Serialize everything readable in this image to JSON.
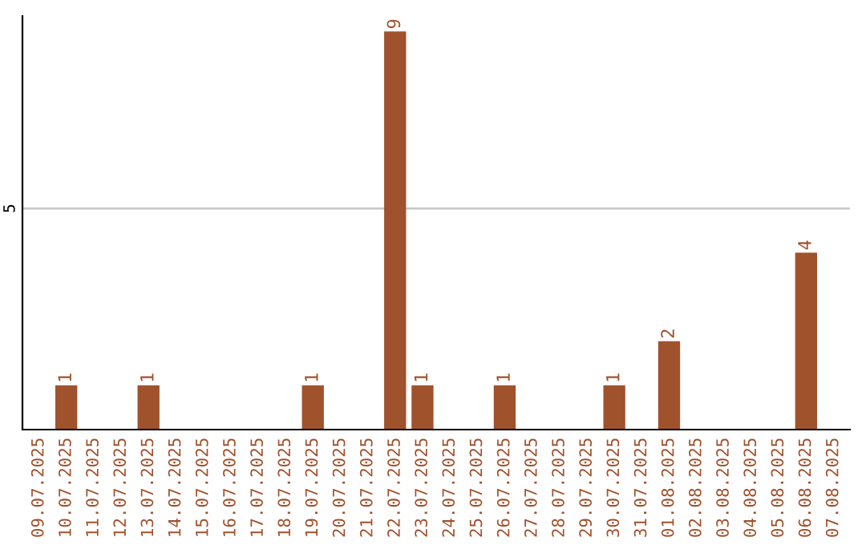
{
  "chart_data": {
    "type": "bar",
    "categories": [
      "09.07.2025",
      "10.07.2025",
      "11.07.2025",
      "12.07.2025",
      "13.07.2025",
      "14.07.2025",
      "15.07.2025",
      "16.07.2025",
      "17.07.2025",
      "18.07.2025",
      "19.07.2025",
      "20.07.2025",
      "21.07.2025",
      "22.07.2025",
      "23.07.2025",
      "24.07.2025",
      "25.07.2025",
      "26.07.2025",
      "27.07.2025",
      "28.07.2025",
      "29.07.2025",
      "30.07.2025",
      "31.07.2025",
      "01.08.2025",
      "02.08.2025",
      "03.08.2025",
      "04.08.2025",
      "05.08.2025",
      "06.08.2025",
      "07.08.2025"
    ],
    "values": [
      0,
      1,
      0,
      0,
      1,
      0,
      0,
      0,
      0,
      0,
      1,
      0,
      0,
      9,
      1,
      0,
      0,
      1,
      0,
      0,
      0,
      1,
      0,
      2,
      0,
      0,
      0,
      0,
      4,
      0
    ],
    "value_labels": [
      null,
      "1",
      null,
      null,
      "1",
      null,
      null,
      null,
      null,
      null,
      "1",
      null,
      null,
      "9",
      "1",
      null,
      null,
      "1",
      null,
      null,
      null,
      "1",
      null,
      "2",
      null,
      null,
      null,
      null,
      "4",
      null
    ],
    "color": "#a0522d",
    "ylim": [
      0,
      9.35
    ],
    "yticks": [
      5
    ],
    "grid": "y"
  }
}
